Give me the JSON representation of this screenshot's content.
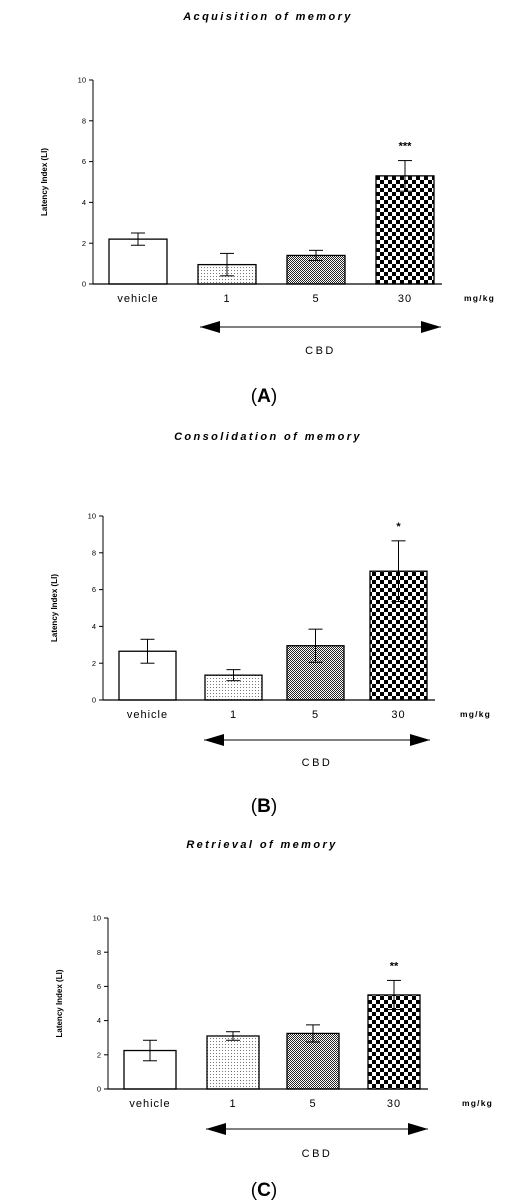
{
  "chart_data": [
    {
      "type": "bar",
      "panel_label": "A",
      "title": "Acquisition of memory",
      "ylabel": "Latency Index (LI)",
      "ylim": [
        0,
        10
      ],
      "yticks": [
        "0",
        "2",
        "4",
        "6",
        "8",
        "10"
      ],
      "categories": [
        "vehicle",
        "1",
        "5",
        "30"
      ],
      "values": [
        2.2,
        0.95,
        1.4,
        5.3
      ],
      "errors": [
        0.3,
        0.55,
        0.25,
        0.75
      ],
      "significance": [
        "",
        "",
        "",
        "***"
      ],
      "patterns": [
        "white",
        "dots",
        "fine-checker",
        "coarse-checker"
      ],
      "unit_label": "mg/kg",
      "group_label": "CBD"
    },
    {
      "type": "bar",
      "panel_label": "B",
      "title": "Consolidation of memory",
      "ylabel": "Latency Index (LI)",
      "ylim": [
        0,
        10
      ],
      "yticks": [
        "0",
        "2",
        "4",
        "6",
        "8",
        "10"
      ],
      "categories": [
        "vehicle",
        "1",
        "5",
        "30"
      ],
      "values": [
        2.65,
        1.35,
        2.95,
        7.0
      ],
      "errors": [
        0.65,
        0.3,
        0.9,
        1.65
      ],
      "significance": [
        "",
        "",
        "",
        "*"
      ],
      "patterns": [
        "white",
        "dots",
        "fine-checker",
        "coarse-checker"
      ],
      "unit_label": "mg/kg",
      "group_label": "CBD"
    },
    {
      "type": "bar",
      "panel_label": "C",
      "title": "Retrieval of memory",
      "ylabel": "Latency Index (LI)",
      "ylim": [
        0,
        10
      ],
      "yticks": [
        "0",
        "2",
        "4",
        "6",
        "8",
        "10"
      ],
      "categories": [
        "vehicle",
        "1",
        "5",
        "30"
      ],
      "values": [
        2.25,
        3.1,
        3.25,
        5.5
      ],
      "errors": [
        0.6,
        0.25,
        0.5,
        0.85
      ],
      "significance": [
        "",
        "",
        "",
        "**"
      ],
      "patterns": [
        "white",
        "dots",
        "fine-checker",
        "coarse-checker"
      ],
      "unit_label": "mg/kg",
      "group_label": "CBD"
    }
  ]
}
